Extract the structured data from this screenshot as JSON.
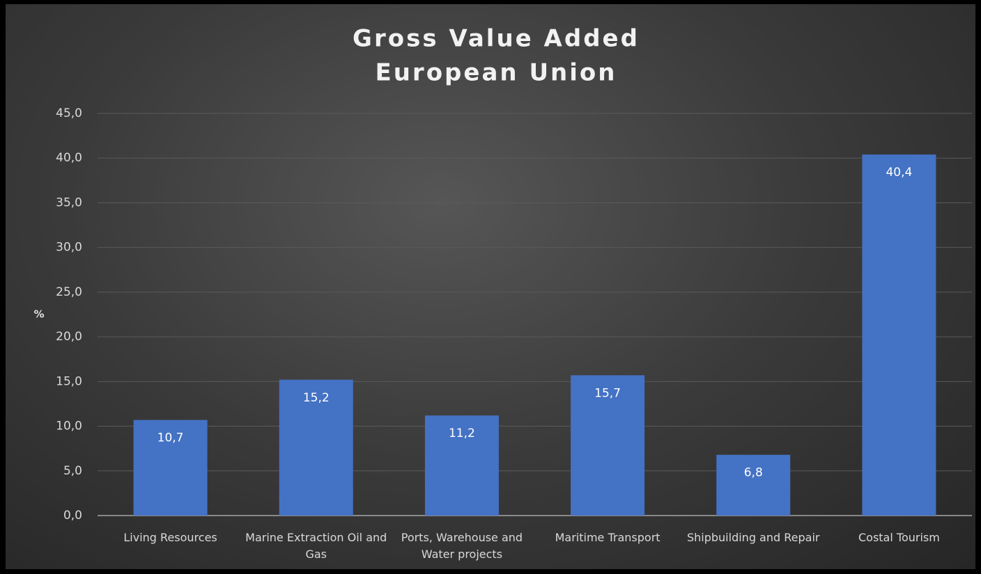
{
  "chart_data": {
    "type": "bar",
    "title": "Gross Value Added",
    "subtitle": "European Union",
    "y_label": "%",
    "categories": [
      "Living Resources",
      "Marine Extraction Oil and Gas",
      "Ports, Warehouse and Water projects",
      "Maritime Transport",
      "Shipbuilding and Repair",
      "Costal Tourism"
    ],
    "values": [
      10.7,
      15.2,
      11.2,
      15.7,
      6.8,
      40.4
    ],
    "value_labels": [
      "10,7",
      "15,2",
      "11,2",
      "15,7",
      "6,8",
      "40,4"
    ],
    "color": "#4472c4",
    "ylim": [
      0,
      45
    ],
    "yticks": [
      {
        "value": 0,
        "label": "0,0"
      },
      {
        "value": 5,
        "label": "5,0"
      },
      {
        "value": 10,
        "label": "10,0"
      },
      {
        "value": 15,
        "label": "15,0"
      },
      {
        "value": 20,
        "label": "20,0"
      },
      {
        "value": 25,
        "label": "25,0"
      },
      {
        "value": 30,
        "label": "30,0"
      },
      {
        "value": 35,
        "label": "35,0"
      },
      {
        "value": 40,
        "label": "40,0"
      },
      {
        "value": 45,
        "label": "45,0"
      }
    ],
    "grid": true
  }
}
